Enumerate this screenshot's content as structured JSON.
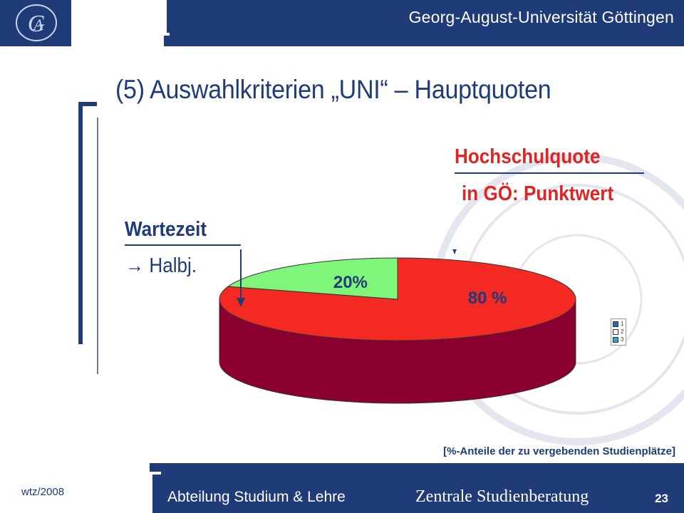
{
  "header": {
    "university": "Georg-August-Universität Göttingen",
    "logo_icon": "university-monogram-icon",
    "colors": {
      "primary_blue": "#1f3b78"
    }
  },
  "title": "(5) Auswahlkriterien „UNI“ – Hauptquoten",
  "labels": {
    "hochschulquote_title": "Hochschulquote",
    "hochschulquote_sub": "in GÖ: Punktwert",
    "wartezeit_title": "Wartezeit",
    "wartezeit_sub": "→ Halbj."
  },
  "chart_data": {
    "type": "pie",
    "categories": [
      "Hochschulquote",
      "Wartezeit"
    ],
    "values": [
      80,
      20
    ],
    "data_labels": [
      "80 %",
      "20%"
    ],
    "colors": [
      "#f42a22",
      "#7ff57a"
    ],
    "side_colors": [
      "#8b0030",
      "#22a02a"
    ],
    "legend": {
      "placement": "right",
      "entries": [
        "1",
        "2",
        "3"
      ]
    },
    "footnote": "[%-Anteile der zu vergebenden Studienplätze]"
  },
  "footer": {
    "author": "wtz/2008",
    "department": "Abteilung Studium & Lehre",
    "service": "Zentrale Studienberatung",
    "page": "23"
  }
}
